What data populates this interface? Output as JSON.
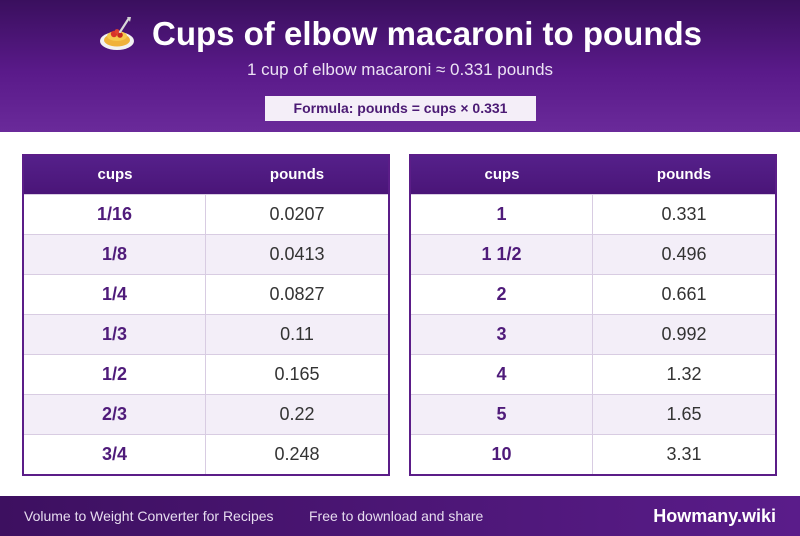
{
  "header": {
    "title": "Cups of elbow macaroni to pounds",
    "subtitle": "1 cup of elbow macaroni ≈ 0.331 pounds",
    "formula": "Formula: pounds = cups × 0.331",
    "icon": "spaghetti-plate-icon"
  },
  "tables": {
    "left": {
      "col1": "cups",
      "col2": "pounds",
      "rows": [
        {
          "cups": "1/16",
          "pounds": "0.0207"
        },
        {
          "cups": "1/8",
          "pounds": "0.0413"
        },
        {
          "cups": "1/4",
          "pounds": "0.0827"
        },
        {
          "cups": "1/3",
          "pounds": "0.11"
        },
        {
          "cups": "1/2",
          "pounds": "0.165"
        },
        {
          "cups": "2/3",
          "pounds": "0.22"
        },
        {
          "cups": "3/4",
          "pounds": "0.248"
        }
      ]
    },
    "right": {
      "col1": "cups",
      "col2": "pounds",
      "rows": [
        {
          "cups": "1",
          "pounds": "0.331"
        },
        {
          "cups": "1 1/2",
          "pounds": "0.496"
        },
        {
          "cups": "2",
          "pounds": "0.661"
        },
        {
          "cups": "3",
          "pounds": "0.992"
        },
        {
          "cups": "4",
          "pounds": "1.32"
        },
        {
          "cups": "5",
          "pounds": "1.65"
        },
        {
          "cups": "10",
          "pounds": "3.31"
        }
      ]
    }
  },
  "footer": {
    "left": "Volume to Weight Converter for Recipes",
    "middle": "Free to download and share",
    "brand": "Howmany.wiki"
  },
  "colors": {
    "primary": "#5a1a8a",
    "accent_text": "#4f1b7a"
  }
}
